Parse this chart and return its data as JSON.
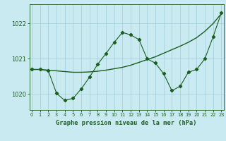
{
  "xlabel": "Graphe pression niveau de la mer (hPa)",
  "bg_color": "#c8eaf0",
  "grid_color": "#a0ccd8",
  "line_color": "#1a5e20",
  "x_ticks": [
    0,
    1,
    2,
    3,
    4,
    5,
    6,
    7,
    8,
    9,
    10,
    11,
    12,
    13,
    14,
    15,
    16,
    17,
    18,
    19,
    20,
    21,
    22,
    23
  ],
  "y_ticks": [
    1020,
    1021,
    1022
  ],
  "ylim": [
    1019.55,
    1022.55
  ],
  "xlim": [
    -0.3,
    23.3
  ],
  "smooth_line": {
    "x": [
      0,
      1,
      2,
      3,
      4,
      5,
      6,
      7,
      8,
      9,
      10,
      11,
      12,
      13,
      14,
      15,
      16,
      17,
      18,
      19,
      20,
      21,
      22,
      23
    ],
    "y": [
      1020.7,
      1020.7,
      1020.68,
      1020.66,
      1020.64,
      1020.62,
      1020.62,
      1020.63,
      1020.65,
      1020.68,
      1020.72,
      1020.76,
      1020.82,
      1020.9,
      1020.98,
      1021.06,
      1021.16,
      1021.26,
      1021.36,
      1021.47,
      1021.6,
      1021.78,
      1022.0,
      1022.28
    ]
  },
  "detail_line": {
    "x": [
      0,
      1,
      2,
      3,
      4,
      5,
      6,
      7,
      8,
      9,
      10,
      11,
      12,
      13,
      14,
      15,
      16,
      17,
      18,
      19,
      20,
      21,
      22,
      23
    ],
    "y": [
      1020.7,
      1020.7,
      1020.66,
      1020.02,
      1019.82,
      1019.88,
      1020.15,
      1020.48,
      1020.85,
      1021.15,
      1021.47,
      1021.75,
      1021.68,
      1021.55,
      1021.0,
      1020.88,
      1020.58,
      1020.1,
      1020.22,
      1020.62,
      1020.7,
      1021.0,
      1021.62,
      1022.3
    ]
  }
}
